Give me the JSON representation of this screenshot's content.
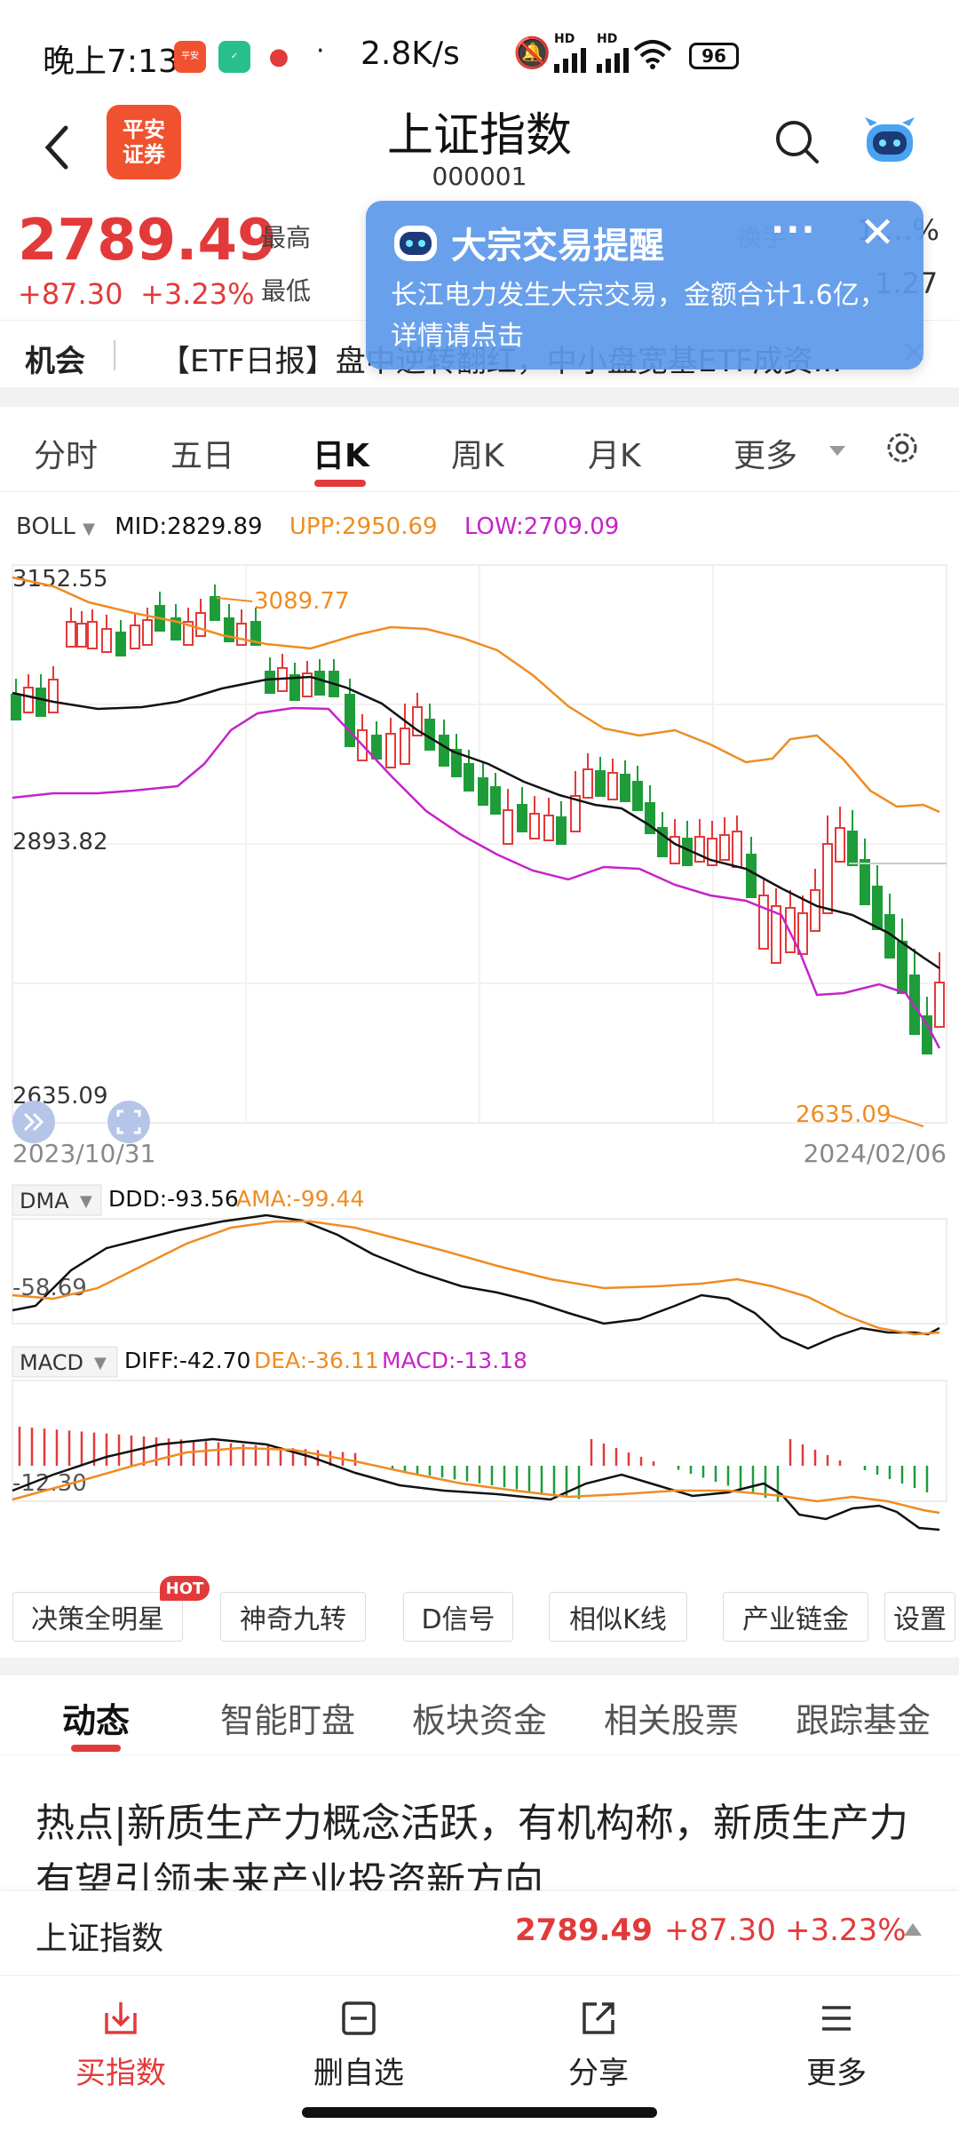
{
  "status_bar": {
    "time": "晚上7:13",
    "speed": "2.8K/s",
    "battery": "96",
    "network_1": "HD",
    "network_2": "HD"
  },
  "header": {
    "title": "上证指数",
    "code": "000001",
    "logo_text": "平安\n证券"
  },
  "quote": {
    "price": "2789.49",
    "change": "+87.30",
    "change_pct": "+3.23%",
    "high_label": "最高",
    "low_label": "最低",
    "turnover_label": "换手",
    "turnover_value": "1.…%",
    "amplitude_value": "1.27"
  },
  "ticker": {
    "tag": "机会",
    "text": "【ETF日报】盘中逆转翻红，中小盘宽基ETF成资..."
  },
  "popup": {
    "title": "大宗交易提醒",
    "body": "长江电力发生大宗交易，金额合计1.6亿，详情请点击",
    "more": "···",
    "close": "✕"
  },
  "period_tabs": [
    {
      "label": "分时"
    },
    {
      "label": "五日"
    },
    {
      "label": "日K"
    },
    {
      "label": "周K"
    },
    {
      "label": "月K"
    },
    {
      "label": "更多"
    }
  ],
  "main_indicator": {
    "name": "BOLL",
    "mid": "MID:2829.89",
    "upp": "UPP:2950.69",
    "low": "LOW:2709.09",
    "y_top": "3152.55",
    "y_mid": "2893.82",
    "y_bottom": "2635.09",
    "peak_label": "3089.77",
    "trough_label": "2635.09",
    "date_start": "2023/10/31",
    "date_end": "2024/02/06"
  },
  "dma_indicator": {
    "name": "DMA",
    "ddd": "DDD:-93.56",
    "ama": "AMA:-99.44",
    "axis_label": "-58.69"
  },
  "macd_indicator": {
    "name": "MACD",
    "diff": "DIFF:-42.70",
    "dea": "DEA:-36.11",
    "macd": "MACD:-13.18",
    "axis_label": "-12.30"
  },
  "tools": [
    {
      "label": "决策全明星"
    },
    {
      "label": "神奇九转"
    },
    {
      "label": "D信号"
    },
    {
      "label": "相似K线"
    },
    {
      "label": "产业链金"
    },
    {
      "label": "设置"
    }
  ],
  "hot_badge": "HOT",
  "content_tabs": [
    {
      "label": "动态"
    },
    {
      "label": "智能盯盘"
    },
    {
      "label": "板块资金"
    },
    {
      "label": "相关股票"
    },
    {
      "label": "跟踪基金"
    }
  ],
  "headline": "热点|新质生产力概念活跃，有机构称，新质生产力有望引领未来产业投资新方向",
  "quote_bar": {
    "name": "上证指数",
    "price": "2789.49",
    "change": "+87.30",
    "change_pct": "+3.23%"
  },
  "bottom_nav": [
    {
      "label": "买指数",
      "icon": "buy-index-icon"
    },
    {
      "label": "删自选",
      "icon": "remove-watchlist-icon"
    },
    {
      "label": "分享",
      "icon": "share-icon"
    },
    {
      "label": "更多",
      "icon": "more-list-icon"
    }
  ],
  "colors": {
    "up": "#e23a3a",
    "down": "#1f9c3a",
    "mid": "#111111",
    "upper": "#ef8c22",
    "lower": "#c623c9",
    "brand": "#f0522f",
    "popup": "#5e99eb"
  }
}
